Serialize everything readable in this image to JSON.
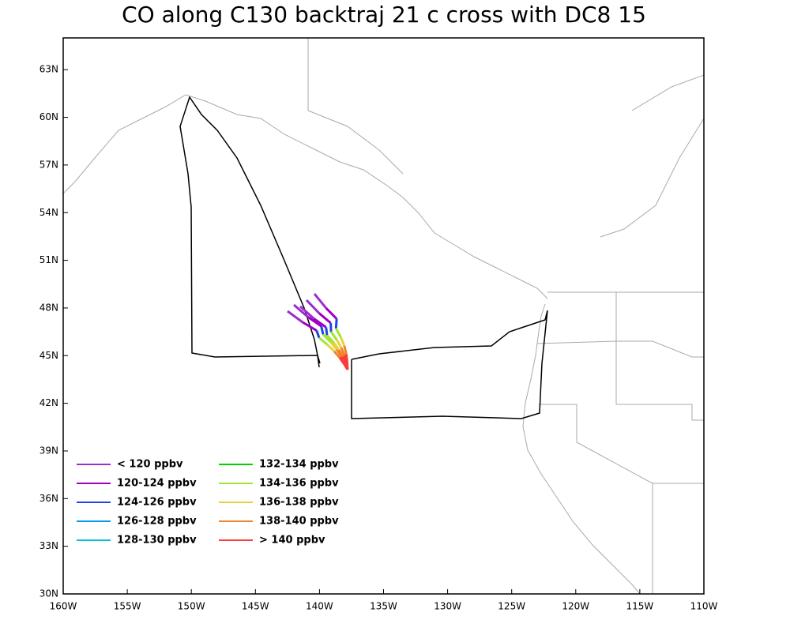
{
  "title": "CO along C130 backtraj 21 c cross with DC8 15",
  "map": {
    "xlim": [
      -160,
      -110
    ],
    "ylim": [
      30,
      65
    ],
    "xticks": [
      {
        "value": -160,
        "label": "160W"
      },
      {
        "value": -155,
        "label": "155W"
      },
      {
        "value": -150,
        "label": "150W"
      },
      {
        "value": -145,
        "label": "145W"
      },
      {
        "value": -140,
        "label": "140W"
      },
      {
        "value": -135,
        "label": "135W"
      },
      {
        "value": -130,
        "label": "130W"
      },
      {
        "value": -125,
        "label": "125W"
      },
      {
        "value": -120,
        "label": "120W"
      },
      {
        "value": -115,
        "label": "115W"
      },
      {
        "value": -110,
        "label": "110W"
      }
    ],
    "yticks": [
      {
        "value": 30,
        "label": "30N"
      },
      {
        "value": 33,
        "label": "33N"
      },
      {
        "value": 36,
        "label": "36N"
      },
      {
        "value": 39,
        "label": "39N"
      },
      {
        "value": 42,
        "label": "42N"
      },
      {
        "value": 45,
        "label": "45N"
      },
      {
        "value": 48,
        "label": "48N"
      },
      {
        "value": 51,
        "label": "51N"
      },
      {
        "value": 54,
        "label": "54N"
      },
      {
        "value": 57,
        "label": "57N"
      },
      {
        "value": 60,
        "label": "60N"
      },
      {
        "value": 63,
        "label": "63N"
      }
    ]
  },
  "legend": [
    {
      "name": "< 120 ppbv",
      "color": "#9a2fd0"
    },
    {
      "name": "120-124 ppbv",
      "color": "#a000c0"
    },
    {
      "name": "124-126 ppbv",
      "color": "#1e46e6"
    },
    {
      "name": "126-128 ppbv",
      "color": "#009cf0"
    },
    {
      "name": "128-130 ppbv",
      "color": "#00c4d2"
    },
    {
      "name": "132-134 ppbv",
      "color": "#00d200"
    },
    {
      "name": "134-136 ppbv",
      "color": "#a0e632"
    },
    {
      "name": "136-138 ppbv",
      "color": "#e6d23c"
    },
    {
      "name": "138-140 ppbv",
      "color": "#f08228"
    },
    {
      "name": "> 140 ppbv",
      "color": "#fa3c3c"
    }
  ]
}
